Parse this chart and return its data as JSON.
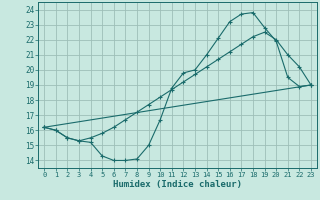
{
  "title": "",
  "xlabel": "Humidex (Indice chaleur)",
  "xlim": [
    -0.5,
    23.5
  ],
  "ylim": [
    13.5,
    24.5
  ],
  "yticks": [
    14,
    15,
    16,
    17,
    18,
    19,
    20,
    21,
    22,
    23,
    24
  ],
  "xticks": [
    0,
    1,
    2,
    3,
    4,
    5,
    6,
    7,
    8,
    9,
    10,
    11,
    12,
    13,
    14,
    15,
    16,
    17,
    18,
    19,
    20,
    21,
    22,
    23
  ],
  "background_color": "#c8e8e0",
  "grid_color": "#9dbfb8",
  "line_color": "#1a6b6b",
  "line1_x": [
    0,
    1,
    2,
    3,
    4,
    5,
    6,
    7,
    8,
    9,
    10,
    11,
    12,
    13,
    14,
    15,
    16,
    17,
    18,
    19,
    20,
    21,
    22,
    23
  ],
  "line1_y": [
    16.2,
    16.0,
    15.5,
    15.3,
    15.2,
    14.3,
    14.0,
    14.0,
    14.1,
    15.0,
    16.7,
    18.8,
    19.8,
    20.0,
    21.0,
    22.1,
    23.2,
    23.7,
    23.8,
    22.8,
    21.9,
    19.5,
    18.9,
    19.0
  ],
  "line2_x": [
    0,
    1,
    2,
    3,
    4,
    5,
    6,
    7,
    8,
    9,
    10,
    11,
    12,
    13,
    14,
    15,
    16,
    17,
    18,
    19,
    20,
    21,
    22,
    23
  ],
  "line2_y": [
    16.2,
    16.0,
    15.5,
    15.3,
    15.5,
    15.8,
    16.2,
    16.7,
    17.2,
    17.7,
    18.2,
    18.7,
    19.2,
    19.7,
    20.2,
    20.7,
    21.2,
    21.7,
    22.2,
    22.5,
    22.0,
    21.0,
    20.2,
    19.0
  ],
  "line3_x": [
    0,
    23
  ],
  "line3_y": [
    16.2,
    19.0
  ]
}
